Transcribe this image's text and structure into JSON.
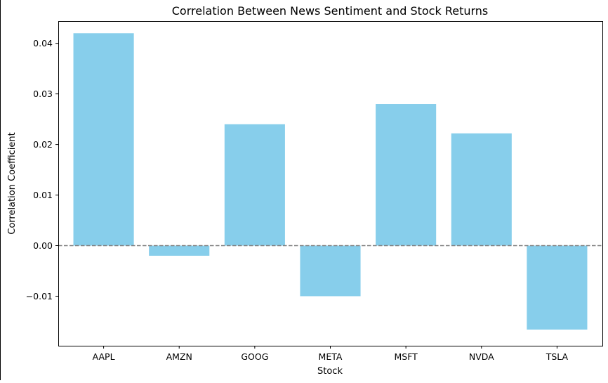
{
  "chart_data": {
    "type": "bar",
    "title": "Correlation Between News Sentiment and Stock Returns",
    "xlabel": "Stock",
    "ylabel": "Correlation Coefficient",
    "categories": [
      "AAPL",
      "AMZN",
      "GOOG",
      "META",
      "MSFT",
      "NVDA",
      "TSLA"
    ],
    "values": [
      0.042,
      -0.002,
      0.024,
      -0.01,
      0.028,
      0.0222,
      -0.0166
    ],
    "ylim": [
      -0.0198,
      0.0444
    ],
    "yticks": [
      0.04,
      0.03,
      0.02,
      0.01,
      0.0,
      -0.01
    ],
    "ytick_labels": [
      "0.04",
      "0.03",
      "0.02",
      "0.01",
      "0.00",
      "−0.01"
    ],
    "reference_line": {
      "y": 0,
      "style": "dashed"
    },
    "grid": false,
    "bar_color": "#87CEEB",
    "reference_line_color": "#808080"
  }
}
